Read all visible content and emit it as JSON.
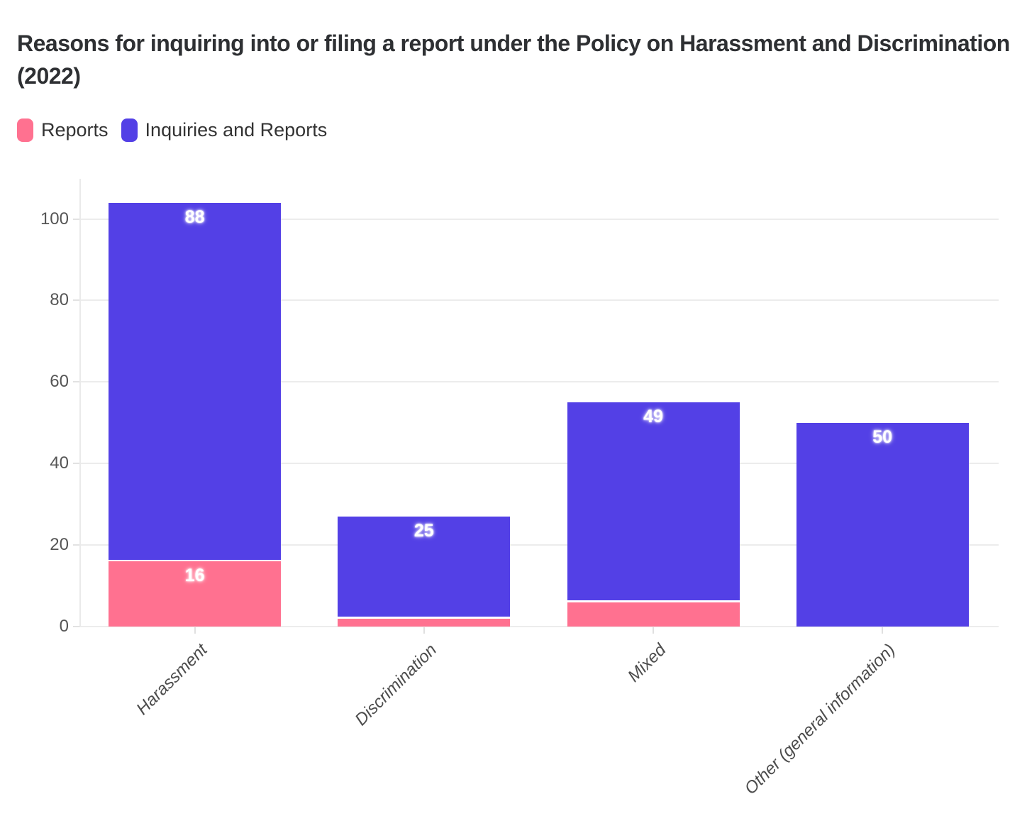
{
  "chart_data": {
    "type": "bar",
    "stacked": true,
    "title": "Reasons for inquiring into or filing a report under the Policy on Harassment and Discrimination (2022)",
    "categories": [
      "Harassment",
      "Discrimination",
      "Mixed",
      "Other (general information)"
    ],
    "series": [
      {
        "name": "Reports",
        "color": "#FF7190",
        "values": [
          16,
          2,
          6,
          0
        ]
      },
      {
        "name": "Inquiries and Reports",
        "color": "#5340E6",
        "values": [
          88,
          25,
          49,
          50
        ]
      }
    ],
    "stack_totals": [
      104,
      27,
      55,
      50
    ],
    "visible_bar_labels": [
      "16",
      "88",
      "25",
      "49",
      "50"
    ],
    "yticks": [
      0,
      20,
      40,
      60,
      80,
      100
    ],
    "ylim": [
      0,
      110
    ],
    "xlabel": "",
    "ylabel": "",
    "grid": "horizontal",
    "legend_position": "top-left",
    "bar_label_text_color": "#ffffff",
    "axis_text_color": "#555555",
    "title_color": "#2e3033"
  }
}
